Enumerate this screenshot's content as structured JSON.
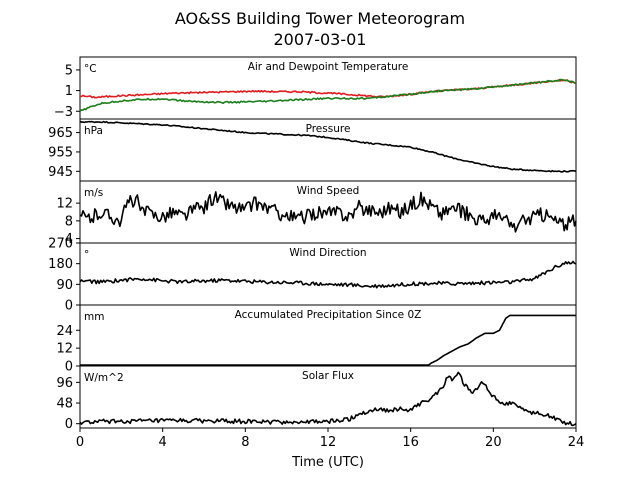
{
  "figure": {
    "title": "AO&SS Building Tower Meteorogram",
    "subtitle": "2007-03-01",
    "xlabel": "Time (UTC)"
  },
  "chart_data": [
    {
      "type": "line",
      "title": "Air and Dewpoint Temperature",
      "unit": "°C",
      "xlim": [
        0,
        24
      ],
      "ylim": [
        -4.5,
        7.5
      ],
      "yticks": [
        -3,
        1,
        5
      ],
      "series": [
        {
          "color": "#e41a1c",
          "points": [
            [
              0,
              0.0
            ],
            [
              0.8,
              -0.3
            ],
            [
              1.5,
              -0.1
            ],
            [
              2.5,
              0.1
            ],
            [
              3.5,
              0.3
            ],
            [
              4.5,
              0.5
            ],
            [
              5.5,
              0.6
            ],
            [
              6.5,
              0.7
            ],
            [
              7.5,
              0.8
            ],
            [
              8.5,
              0.9
            ],
            [
              9.5,
              0.8
            ],
            [
              10.5,
              0.8
            ],
            [
              11.5,
              0.6
            ],
            [
              12.5,
              0.4
            ],
            [
              13.5,
              0.1
            ],
            [
              14.5,
              -0.2
            ],
            [
              15,
              -0.1
            ],
            [
              16,
              0.3
            ],
            [
              17,
              0.8
            ],
            [
              18,
              1.1
            ],
            [
              19,
              1.3
            ],
            [
              20,
              1.7
            ],
            [
              21,
              2.1
            ],
            [
              22,
              2.5
            ],
            [
              22.5,
              2.7
            ],
            [
              23,
              2.9
            ],
            [
              23.5,
              3.0
            ],
            [
              24,
              2.4
            ]
          ]
        },
        {
          "color": "#1a7f1a",
          "points": [
            [
              0,
              -3.0
            ],
            [
              0.5,
              -2.2
            ],
            [
              1,
              -1.5
            ],
            [
              2,
              -1.0
            ],
            [
              3,
              -0.7
            ],
            [
              4,
              -0.6
            ],
            [
              5,
              -1.0
            ],
            [
              6,
              -1.2
            ],
            [
              7,
              -1.3
            ],
            [
              8,
              -1.2
            ],
            [
              9,
              -1.1
            ],
            [
              10,
              -0.9
            ],
            [
              11,
              -0.7
            ],
            [
              12,
              -0.5
            ],
            [
              13,
              -0.5
            ],
            [
              14,
              -0.5
            ],
            [
              15,
              -0.1
            ],
            [
              16,
              0.3
            ],
            [
              17,
              0.8
            ],
            [
              18,
              1.1
            ],
            [
              19,
              1.3
            ],
            [
              20,
              1.7
            ],
            [
              21,
              2.1
            ],
            [
              22,
              2.5
            ],
            [
              22.5,
              2.7
            ],
            [
              23,
              3.0
            ],
            [
              23.5,
              3.0
            ],
            [
              24,
              2.4
            ]
          ]
        }
      ]
    },
    {
      "type": "line",
      "title": "Pressure",
      "unit": "hPa",
      "xlim": [
        0,
        24
      ],
      "ylim": [
        940,
        972
      ],
      "yticks": [
        945,
        955,
        965
      ],
      "series": [
        {
          "color": "#000000",
          "points": [
            [
              0,
              970.5
            ],
            [
              1,
              970.5
            ],
            [
              2,
              970
            ],
            [
              3,
              969.5
            ],
            [
              4,
              969
            ],
            [
              5,
              968
            ],
            [
              6,
              967
            ],
            [
              7,
              966
            ],
            [
              8,
              965
            ],
            [
              9,
              964.5
            ],
            [
              10,
              964
            ],
            [
              11,
              963.5
            ],
            [
              12,
              962.5
            ],
            [
              13,
              961
            ],
            [
              14,
              959.5
            ],
            [
              15,
              958.5
            ],
            [
              16,
              957.5
            ],
            [
              17,
              955
            ],
            [
              18,
              952
            ],
            [
              19,
              949.5
            ],
            [
              20,
              947.5
            ],
            [
              21,
              946
            ],
            [
              22,
              945.5
            ],
            [
              23,
              945
            ],
            [
              24,
              945
            ]
          ]
        }
      ]
    },
    {
      "type": "line",
      "title": "Wind Speed",
      "unit": "m/s",
      "xlim": [
        0,
        24
      ],
      "ylim": [
        3,
        17
      ],
      "yticks": [
        4,
        8,
        12
      ],
      "series": [
        {
          "color": "#000000",
          "points": [
            [
              0,
              9
            ],
            [
              0.5,
              8.5
            ],
            [
              1,
              10
            ],
            [
              1.5,
              9
            ],
            [
              2,
              8
            ],
            [
              2.3,
              12
            ],
            [
              2.7,
              13
            ],
            [
              3,
              10
            ],
            [
              3.5,
              9.5
            ],
            [
              4,
              9
            ],
            [
              4.5,
              10
            ],
            [
              5,
              9
            ],
            [
              5.5,
              10.5
            ],
            [
              6,
              11
            ],
            [
              6.5,
              13.5
            ],
            [
              7,
              12
            ],
            [
              7.5,
              11
            ],
            [
              8,
              10.5
            ],
            [
              8.5,
              12
            ],
            [
              9,
              11
            ],
            [
              9.5,
              10
            ],
            [
              10,
              9
            ],
            [
              10.5,
              8.5
            ],
            [
              11,
              9
            ],
            [
              11.5,
              10
            ],
            [
              12,
              9.5
            ],
            [
              12.5,
              10
            ],
            [
              13,
              9
            ],
            [
              13.5,
              11
            ],
            [
              14,
              10.5
            ],
            [
              14.5,
              10
            ],
            [
              15,
              11
            ],
            [
              15.5,
              10
            ],
            [
              16,
              11.5
            ],
            [
              16.5,
              13
            ],
            [
              17,
              11.5
            ],
            [
              17.5,
              9.5
            ],
            [
              18,
              11
            ],
            [
              18.5,
              10
            ],
            [
              19,
              9
            ],
            [
              19.5,
              8
            ],
            [
              20,
              9
            ],
            [
              20.5,
              8.5
            ],
            [
              21,
              6.5
            ],
            [
              21.5,
              8
            ],
            [
              22,
              9
            ],
            [
              22.5,
              9.5
            ],
            [
              23,
              8
            ],
            [
              23.5,
              7
            ],
            [
              24,
              8
            ]
          ]
        }
      ]
    },
    {
      "type": "line",
      "title": "Wind Direction",
      "unit": "°",
      "xlim": [
        0,
        24
      ],
      "ylim": [
        0,
        270
      ],
      "yticks": [
        0,
        90,
        180,
        270
      ],
      "series": [
        {
          "color": "#000000",
          "points": [
            [
              0,
              105
            ],
            [
              1,
              100
            ],
            [
              2,
              108
            ],
            [
              3,
              115
            ],
            [
              4,
              105
            ],
            [
              5,
              100
            ],
            [
              6,
              105
            ],
            [
              7,
              108
            ],
            [
              8,
              103
            ],
            [
              9,
              100
            ],
            [
              10,
              98
            ],
            [
              11,
              95
            ],
            [
              12,
              90
            ],
            [
              13,
              88
            ],
            [
              14,
              82
            ],
            [
              15,
              85
            ],
            [
              16,
              92
            ],
            [
              17,
              95
            ],
            [
              18,
              93
            ],
            [
              19,
              95
            ],
            [
              20,
              98
            ],
            [
              21,
              100
            ],
            [
              22,
              115
            ],
            [
              22.5,
              140
            ],
            [
              23,
              165
            ],
            [
              23.5,
              185
            ],
            [
              24,
              180
            ]
          ]
        }
      ]
    },
    {
      "type": "line",
      "title": "Accumulated Precipitation Since 0Z",
      "unit": "mm",
      "xlim": [
        0,
        24
      ],
      "ylim": [
        0,
        41
      ],
      "yticks": [
        0,
        12,
        24
      ],
      "series": [
        {
          "color": "#000000",
          "points": [
            [
              0,
              0
            ],
            [
              16.8,
              0
            ],
            [
              17,
              2
            ],
            [
              17.3,
              4
            ],
            [
              17.6,
              7
            ],
            [
              18,
              10
            ],
            [
              18.4,
              13
            ],
            [
              18.8,
              15
            ],
            [
              19.2,
              19
            ],
            [
              19.6,
              22
            ],
            [
              20,
              22
            ],
            [
              20.3,
              24
            ],
            [
              20.6,
              32
            ],
            [
              20.8,
              34
            ],
            [
              24,
              34
            ]
          ]
        }
      ]
    },
    {
      "type": "line",
      "title": "Solar Flux",
      "unit": "W/m^2",
      "xlim": [
        0,
        24
      ],
      "ylim": [
        -10,
        134
      ],
      "yticks": [
        0,
        48,
        96
      ],
      "series": [
        {
          "color": "#000000",
          "points": [
            [
              0,
              2
            ],
            [
              1,
              5
            ],
            [
              3,
              6
            ],
            [
              5,
              7
            ],
            [
              7,
              6
            ],
            [
              9,
              4
            ],
            [
              11,
              4
            ],
            [
              12,
              5
            ],
            [
              13,
              10
            ],
            [
              13.5,
              22
            ],
            [
              14,
              30
            ],
            [
              14.5,
              35
            ],
            [
              15,
              30
            ],
            [
              15.5,
              35
            ],
            [
              16,
              30
            ],
            [
              16.5,
              48
            ],
            [
              17,
              60
            ],
            [
              17.5,
              80
            ],
            [
              17.8,
              110
            ],
            [
              18,
              100
            ],
            [
              18.3,
              120
            ],
            [
              18.6,
              90
            ],
            [
              19,
              70
            ],
            [
              19.5,
              98
            ],
            [
              20,
              62
            ],
            [
              20.5,
              45
            ],
            [
              21,
              50
            ],
            [
              21.5,
              30
            ],
            [
              22,
              25
            ],
            [
              22.5,
              22
            ],
            [
              23,
              12
            ],
            [
              23.5,
              3
            ],
            [
              24,
              0
            ]
          ]
        }
      ]
    }
  ],
  "xaxis": {
    "ticks": [
      0,
      4,
      8,
      12,
      16,
      20,
      24
    ],
    "tick_labels": [
      "0",
      "4",
      "8",
      "12",
      "16",
      "20",
      "24"
    ]
  }
}
